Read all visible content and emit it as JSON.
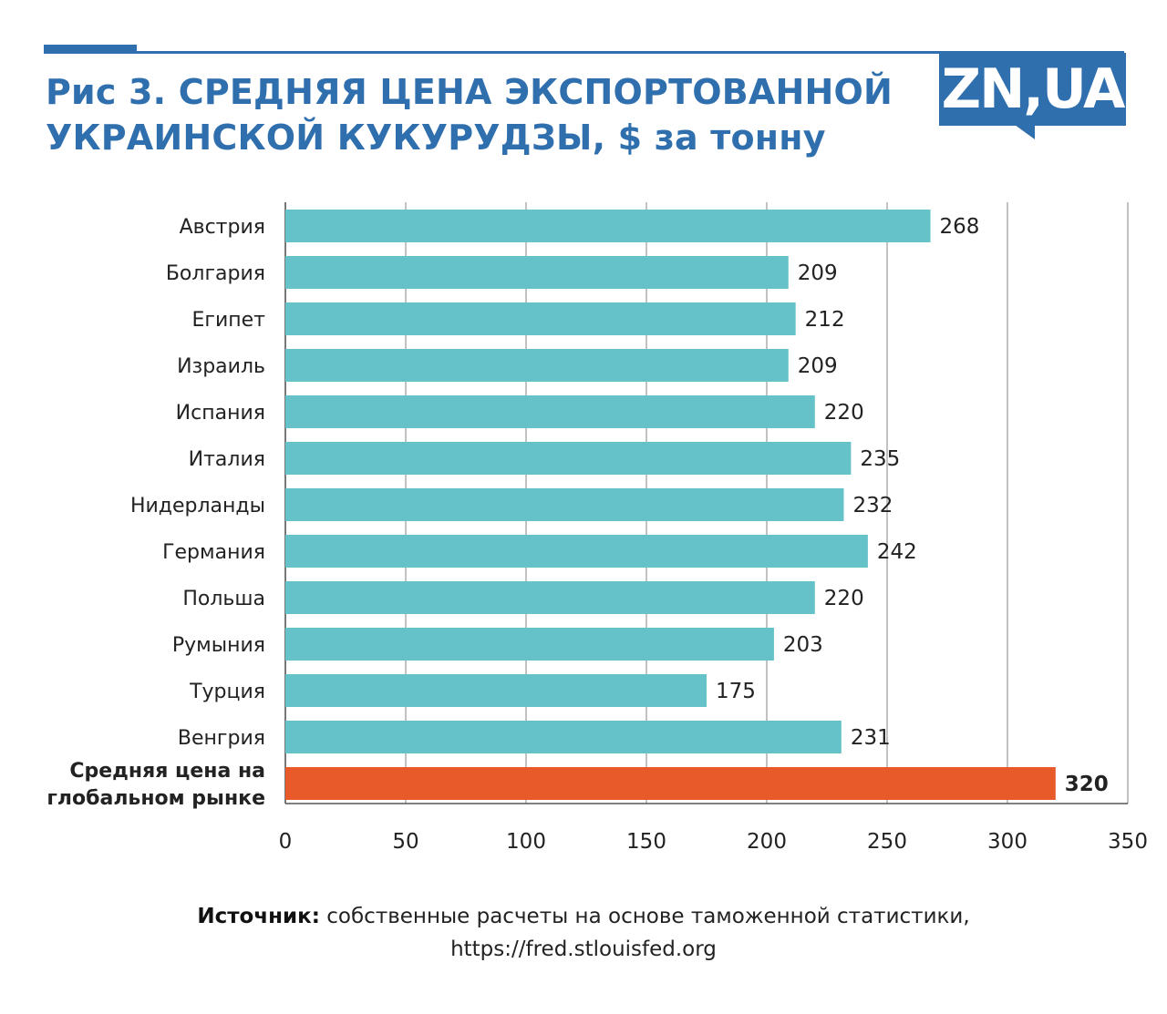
{
  "header": {
    "title_line1": "Рис 3. СРЕДНЯЯ ЦЕНА ЭКСПОРТОВАННОЙ",
    "title_line2": "УКРАИНСКОЙ КУКУРУДЗЫ, $ за тонну",
    "logo_text": "ZN,UA"
  },
  "colors": {
    "brand": "#2f6fae",
    "bar": "#65c2c8",
    "highlight_bar": "#e85a2a",
    "grid": "#9a9a9a"
  },
  "chart_data": {
    "type": "bar",
    "orientation": "horizontal",
    "categories": [
      "Австрия",
      "Болгария",
      "Египет",
      "Израиль",
      "Испания",
      "Италия",
      "Нидерланды",
      "Германия",
      "Польша",
      "Румыния",
      "Турция",
      "Венгрия",
      "Средняя цена на глобальном рынке"
    ],
    "category_lines": [
      [
        "Австрия"
      ],
      [
        "Болгария"
      ],
      [
        "Египет"
      ],
      [
        "Израиль"
      ],
      [
        "Испания"
      ],
      [
        "Италия"
      ],
      [
        "Нидерланды"
      ],
      [
        "Германия"
      ],
      [
        "Польша"
      ],
      [
        "Румыния"
      ],
      [
        "Турция"
      ],
      [
        "Венгрия"
      ],
      [
        "Средняя цена на",
        "глобальном рынке"
      ]
    ],
    "values": [
      268,
      209,
      212,
      209,
      220,
      235,
      232,
      242,
      220,
      203,
      175,
      231,
      320
    ],
    "highlight_index": 12,
    "xlim": [
      0,
      350
    ],
    "xticks": [
      0,
      50,
      100,
      150,
      200,
      250,
      300,
      350
    ],
    "grid": true,
    "legend": "none"
  },
  "source": {
    "label": "Источник:",
    "text": "собственные расчеты на основе таможенной статистики,",
    "url": "https://fred.stlouisfed.org"
  }
}
